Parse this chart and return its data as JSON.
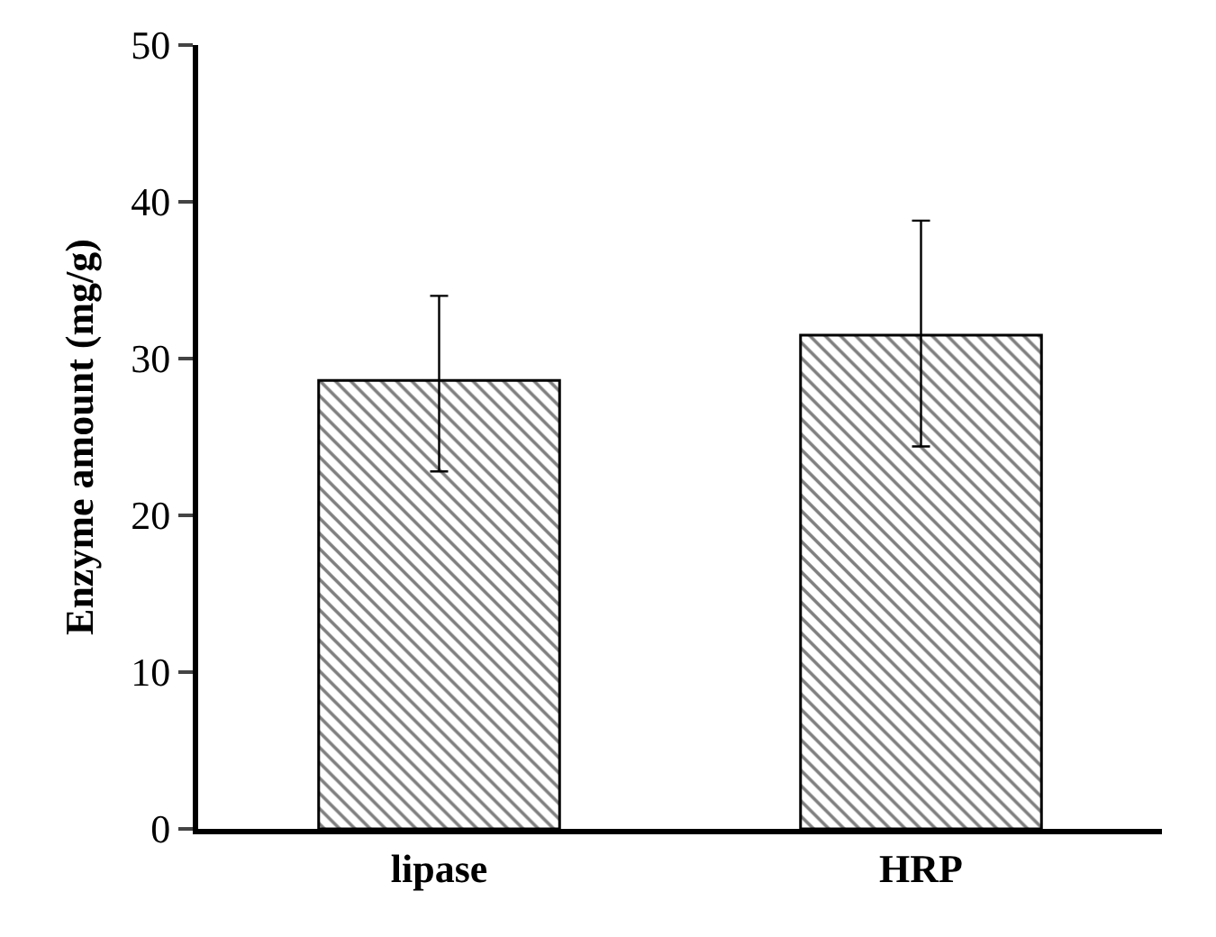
{
  "chart_data": {
    "type": "bar",
    "ylabel": "Enzyme amount (mg/g)",
    "categories": [
      "lipase",
      "HRP"
    ],
    "values": [
      28.6,
      31.5
    ],
    "errors": [
      [
        22.8,
        34.0
      ],
      [
        24.4,
        38.8
      ]
    ],
    "color": "#000000",
    "ylim": [
      0,
      50
    ],
    "yticks": [
      0,
      10,
      20,
      30,
      40,
      50
    ]
  }
}
